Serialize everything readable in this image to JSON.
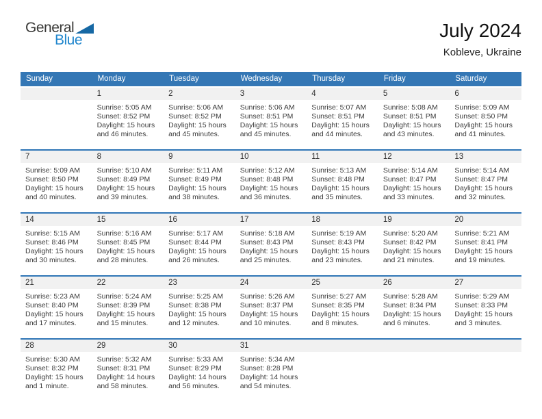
{
  "logo": {
    "text_dark": "General",
    "text_blue": "Blue",
    "triangle_icon": "blue-right-triangle"
  },
  "header": {
    "title": "July 2024",
    "location": "Kobleve, Ukraine"
  },
  "colors": {
    "header_bg": "#3477b5",
    "separator": "#2e75b6",
    "band_bg": "#f1f1f1",
    "logo_dark": "#3a3a38",
    "logo_blue": "#2086cd",
    "logo_triangle": "#1668a4"
  },
  "calendar": {
    "day_headers": [
      "Sunday",
      "Monday",
      "Tuesday",
      "Wednesday",
      "Thursday",
      "Friday",
      "Saturday"
    ],
    "weeks": [
      {
        "days": [
          null,
          {
            "num": "1",
            "sunrise": "Sunrise: 5:05 AM",
            "sunset": "Sunset: 8:52 PM",
            "daylight": "Daylight: 15 hours and 46 minutes."
          },
          {
            "num": "2",
            "sunrise": "Sunrise: 5:06 AM",
            "sunset": "Sunset: 8:52 PM",
            "daylight": "Daylight: 15 hours and 45 minutes."
          },
          {
            "num": "3",
            "sunrise": "Sunrise: 5:06 AM",
            "sunset": "Sunset: 8:51 PM",
            "daylight": "Daylight: 15 hours and 45 minutes."
          },
          {
            "num": "4",
            "sunrise": "Sunrise: 5:07 AM",
            "sunset": "Sunset: 8:51 PM",
            "daylight": "Daylight: 15 hours and 44 minutes."
          },
          {
            "num": "5",
            "sunrise": "Sunrise: 5:08 AM",
            "sunset": "Sunset: 8:51 PM",
            "daylight": "Daylight: 15 hours and 43 minutes."
          },
          {
            "num": "6",
            "sunrise": "Sunrise: 5:09 AM",
            "sunset": "Sunset: 8:50 PM",
            "daylight": "Daylight: 15 hours and 41 minutes."
          }
        ]
      },
      {
        "days": [
          {
            "num": "7",
            "sunrise": "Sunrise: 5:09 AM",
            "sunset": "Sunset: 8:50 PM",
            "daylight": "Daylight: 15 hours and 40 minutes."
          },
          {
            "num": "8",
            "sunrise": "Sunrise: 5:10 AM",
            "sunset": "Sunset: 8:49 PM",
            "daylight": "Daylight: 15 hours and 39 minutes."
          },
          {
            "num": "9",
            "sunrise": "Sunrise: 5:11 AM",
            "sunset": "Sunset: 8:49 PM",
            "daylight": "Daylight: 15 hours and 38 minutes."
          },
          {
            "num": "10",
            "sunrise": "Sunrise: 5:12 AM",
            "sunset": "Sunset: 8:48 PM",
            "daylight": "Daylight: 15 hours and 36 minutes."
          },
          {
            "num": "11",
            "sunrise": "Sunrise: 5:13 AM",
            "sunset": "Sunset: 8:48 PM",
            "daylight": "Daylight: 15 hours and 35 minutes."
          },
          {
            "num": "12",
            "sunrise": "Sunrise: 5:14 AM",
            "sunset": "Sunset: 8:47 PM",
            "daylight": "Daylight: 15 hours and 33 minutes."
          },
          {
            "num": "13",
            "sunrise": "Sunrise: 5:14 AM",
            "sunset": "Sunset: 8:47 PM",
            "daylight": "Daylight: 15 hours and 32 minutes."
          }
        ]
      },
      {
        "days": [
          {
            "num": "14",
            "sunrise": "Sunrise: 5:15 AM",
            "sunset": "Sunset: 8:46 PM",
            "daylight": "Daylight: 15 hours and 30 minutes."
          },
          {
            "num": "15",
            "sunrise": "Sunrise: 5:16 AM",
            "sunset": "Sunset: 8:45 PM",
            "daylight": "Daylight: 15 hours and 28 minutes."
          },
          {
            "num": "16",
            "sunrise": "Sunrise: 5:17 AM",
            "sunset": "Sunset: 8:44 PM",
            "daylight": "Daylight: 15 hours and 26 minutes."
          },
          {
            "num": "17",
            "sunrise": "Sunrise: 5:18 AM",
            "sunset": "Sunset: 8:43 PM",
            "daylight": "Daylight: 15 hours and 25 minutes."
          },
          {
            "num": "18",
            "sunrise": "Sunrise: 5:19 AM",
            "sunset": "Sunset: 8:43 PM",
            "daylight": "Daylight: 15 hours and 23 minutes."
          },
          {
            "num": "19",
            "sunrise": "Sunrise: 5:20 AM",
            "sunset": "Sunset: 8:42 PM",
            "daylight": "Daylight: 15 hours and 21 minutes."
          },
          {
            "num": "20",
            "sunrise": "Sunrise: 5:21 AM",
            "sunset": "Sunset: 8:41 PM",
            "daylight": "Daylight: 15 hours and 19 minutes."
          }
        ]
      },
      {
        "days": [
          {
            "num": "21",
            "sunrise": "Sunrise: 5:23 AM",
            "sunset": "Sunset: 8:40 PM",
            "daylight": "Daylight: 15 hours and 17 minutes."
          },
          {
            "num": "22",
            "sunrise": "Sunrise: 5:24 AM",
            "sunset": "Sunset: 8:39 PM",
            "daylight": "Daylight: 15 hours and 15 minutes."
          },
          {
            "num": "23",
            "sunrise": "Sunrise: 5:25 AM",
            "sunset": "Sunset: 8:38 PM",
            "daylight": "Daylight: 15 hours and 12 minutes."
          },
          {
            "num": "24",
            "sunrise": "Sunrise: 5:26 AM",
            "sunset": "Sunset: 8:37 PM",
            "daylight": "Daylight: 15 hours and 10 minutes."
          },
          {
            "num": "25",
            "sunrise": "Sunrise: 5:27 AM",
            "sunset": "Sunset: 8:35 PM",
            "daylight": "Daylight: 15 hours and 8 minutes."
          },
          {
            "num": "26",
            "sunrise": "Sunrise: 5:28 AM",
            "sunset": "Sunset: 8:34 PM",
            "daylight": "Daylight: 15 hours and 6 minutes."
          },
          {
            "num": "27",
            "sunrise": "Sunrise: 5:29 AM",
            "sunset": "Sunset: 8:33 PM",
            "daylight": "Daylight: 15 hours and 3 minutes."
          }
        ]
      },
      {
        "days": [
          {
            "num": "28",
            "sunrise": "Sunrise: 5:30 AM",
            "sunset": "Sunset: 8:32 PM",
            "daylight": "Daylight: 15 hours and 1 minute."
          },
          {
            "num": "29",
            "sunrise": "Sunrise: 5:32 AM",
            "sunset": "Sunset: 8:31 PM",
            "daylight": "Daylight: 14 hours and 58 minutes."
          },
          {
            "num": "30",
            "sunrise": "Sunrise: 5:33 AM",
            "sunset": "Sunset: 8:29 PM",
            "daylight": "Daylight: 14 hours and 56 minutes."
          },
          {
            "num": "31",
            "sunrise": "Sunrise: 5:34 AM",
            "sunset": "Sunset: 8:28 PM",
            "daylight": "Daylight: 14 hours and 54 minutes."
          },
          null,
          null,
          null
        ]
      }
    ]
  }
}
